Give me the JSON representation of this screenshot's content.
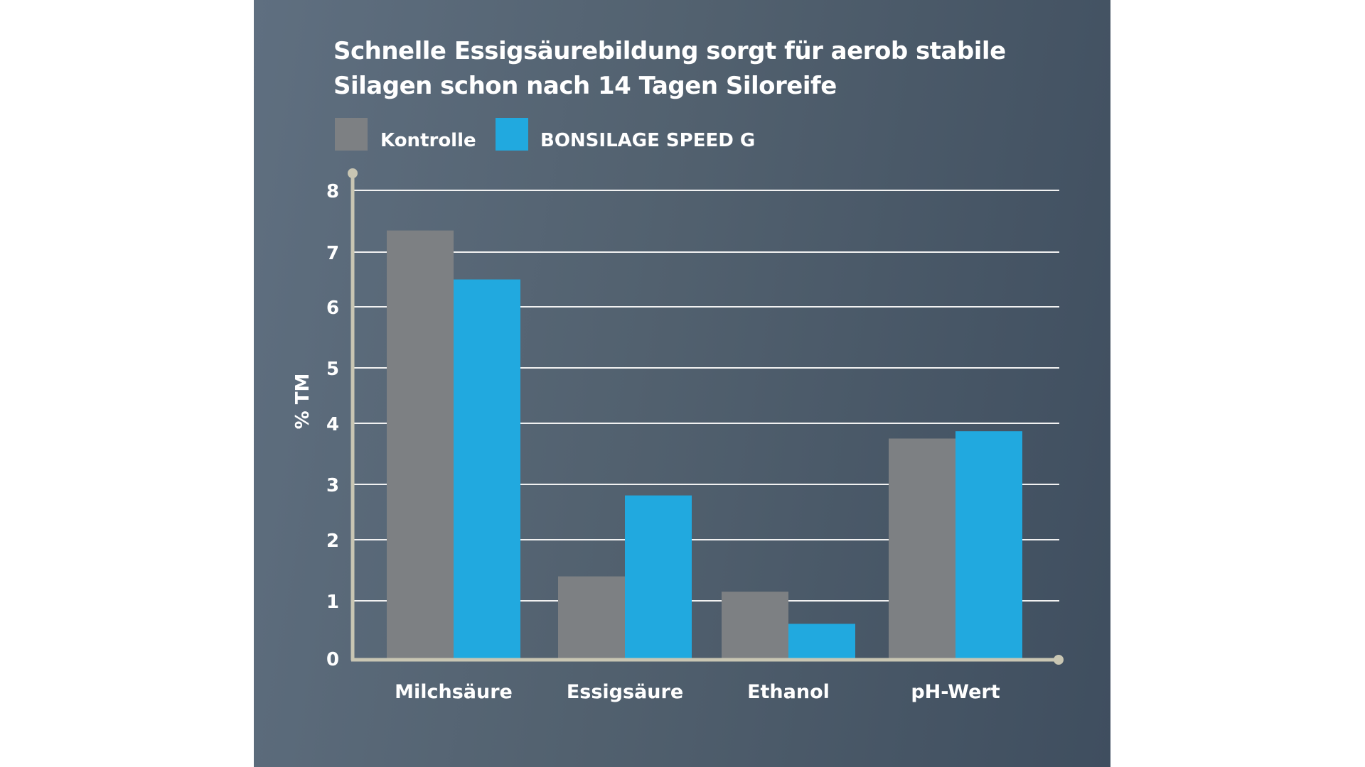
{
  "chart_data": {
    "type": "bar",
    "title": "Schnelle Essigsäurebildung sorgt für aerob stabile Silagen schon nach 14 Tagen Siloreife",
    "title_lines": [
      "Schnelle Essigsäurebildung sorgt für aerob stabile",
      "Silagen schon nach 14 Tagen Siloreife"
    ],
    "xlabel": "",
    "ylabel": "% TM",
    "ylim": [
      0,
      8
    ],
    "yticks": [
      "0",
      "1",
      "2",
      "3",
      "4",
      "5",
      "6",
      "7",
      "8"
    ],
    "grid": true,
    "legend_placement": "top-left",
    "categories": [
      "Milchsäure",
      "Essigsäure",
      "Ethanol",
      "pH-Wert"
    ],
    "series": [
      {
        "name": "Kontrolle",
        "color": "#7d8083",
        "values": [
          7.35,
          1.4,
          1.15,
          3.75
        ]
      },
      {
        "name": "BONSILAGE SPEED G",
        "color": "#21a9df",
        "values": [
          6.5,
          2.8,
          0.6,
          3.87
        ]
      }
    ]
  },
  "colors": {
    "background_left": "#5f6f80",
    "background_right": "#3f4e5f",
    "axis": "#c9c6b3",
    "grid": "#ffffff"
  }
}
